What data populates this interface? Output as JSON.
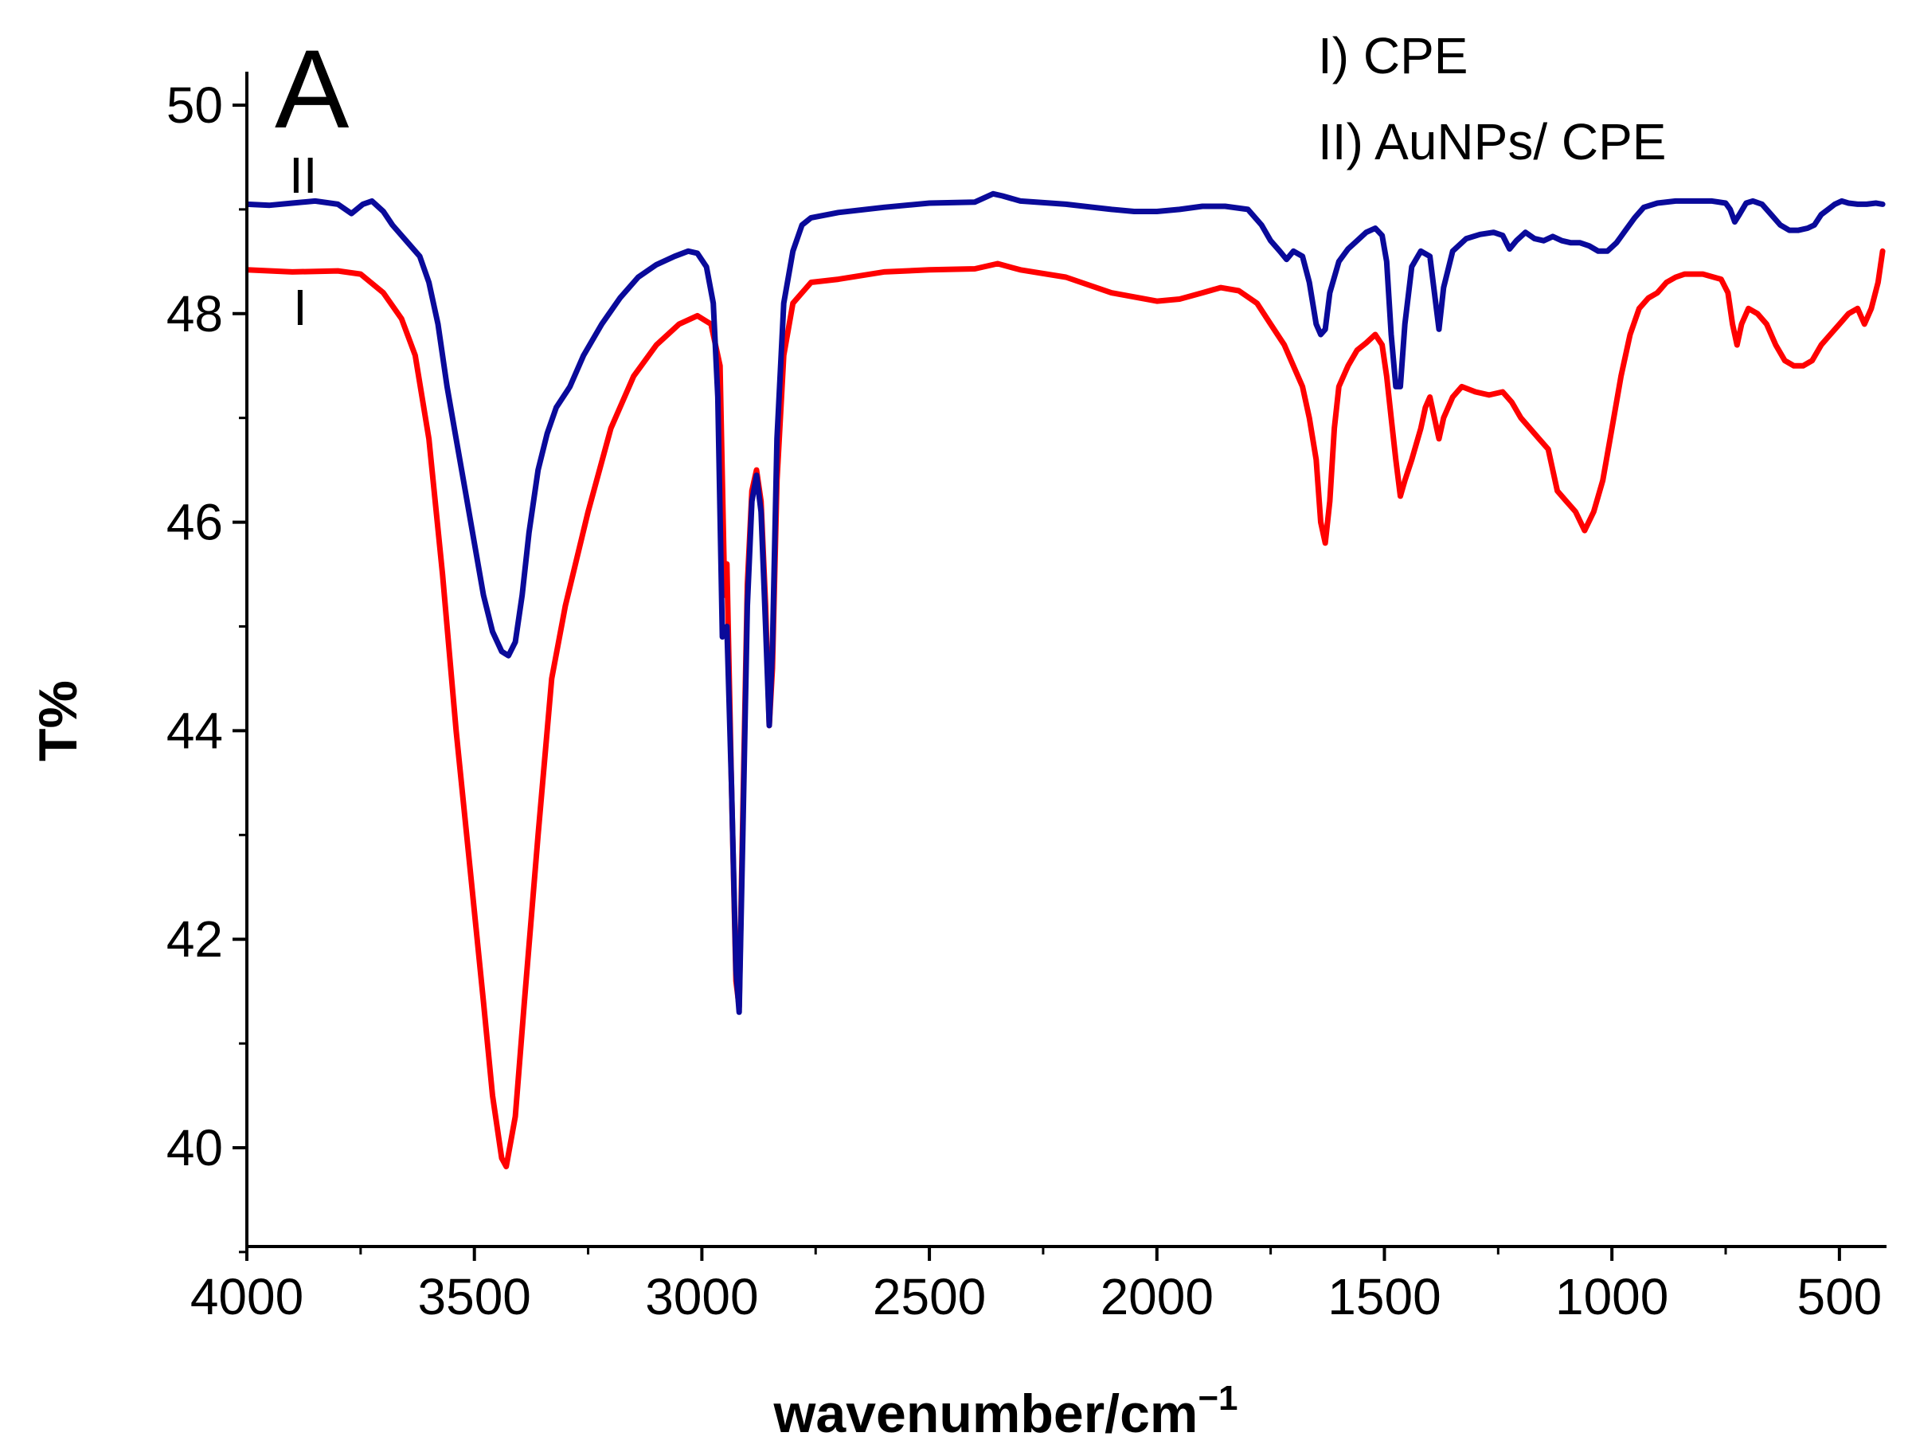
{
  "chart_data": {
    "type": "line",
    "panel_label": "A",
    "xlabel": "wavenumber/cm",
    "xlabel_superscript": "−1",
    "ylabel": "T%",
    "xlim": [
      4000,
      400
    ],
    "ylim": [
      39,
      50
    ],
    "x_ticks": [
      {
        "value": 4000,
        "label": "4000"
      },
      {
        "value": 3500,
        "label": "3500"
      },
      {
        "value": 3000,
        "label": "3000"
      },
      {
        "value": 2500,
        "label": "2500"
      },
      {
        "value": 2000,
        "label": "2000"
      },
      {
        "value": 1500,
        "label": "1500"
      },
      {
        "value": 1000,
        "label": "1000"
      },
      {
        "value": 500,
        "label": "500"
      }
    ],
    "y_ticks": [
      {
        "value": 40,
        "label": "40"
      },
      {
        "value": 42,
        "label": "42"
      },
      {
        "value": 44,
        "label": "44"
      },
      {
        "value": 46,
        "label": "46"
      },
      {
        "value": 48,
        "label": "48"
      },
      {
        "value": 50,
        "label": "50"
      }
    ],
    "legend": [
      "I) CPE",
      "II) AuNPs/ CPE"
    ],
    "series": [
      {
        "name": "I) CPE",
        "label": "I",
        "color": "#ff0000",
        "points": [
          [
            4000,
            48.42
          ],
          [
            3900,
            48.4
          ],
          [
            3800,
            48.41
          ],
          [
            3750,
            48.38
          ],
          [
            3700,
            48.2
          ],
          [
            3660,
            47.95
          ],
          [
            3630,
            47.6
          ],
          [
            3600,
            46.8
          ],
          [
            3570,
            45.5
          ],
          [
            3540,
            44.0
          ],
          [
            3510,
            42.7
          ],
          [
            3480,
            41.4
          ],
          [
            3460,
            40.5
          ],
          [
            3440,
            39.9
          ],
          [
            3430,
            39.82
          ],
          [
            3410,
            40.3
          ],
          [
            3390,
            41.4
          ],
          [
            3360,
            43.0
          ],
          [
            3330,
            44.5
          ],
          [
            3300,
            45.2
          ],
          [
            3250,
            46.1
          ],
          [
            3200,
            46.9
          ],
          [
            3150,
            47.4
          ],
          [
            3100,
            47.7
          ],
          [
            3050,
            47.9
          ],
          [
            3010,
            47.98
          ],
          [
            2980,
            47.9
          ],
          [
            2960,
            47.5
          ],
          [
            2950,
            45.3
          ],
          [
            2945,
            45.6
          ],
          [
            2935,
            43.5
          ],
          [
            2925,
            41.6
          ],
          [
            2918,
            41.35
          ],
          [
            2910,
            43.2
          ],
          [
            2900,
            45.4
          ],
          [
            2890,
            46.3
          ],
          [
            2880,
            46.5
          ],
          [
            2870,
            46.2
          ],
          [
            2860,
            45.2
          ],
          [
            2852,
            44.05
          ],
          [
            2845,
            44.6
          ],
          [
            2835,
            46.4
          ],
          [
            2820,
            47.6
          ],
          [
            2800,
            48.1
          ],
          [
            2760,
            48.3
          ],
          [
            2700,
            48.33
          ],
          [
            2600,
            48.4
          ],
          [
            2500,
            48.42
          ],
          [
            2400,
            48.43
          ],
          [
            2350,
            48.48
          ],
          [
            2300,
            48.42
          ],
          [
            2200,
            48.35
          ],
          [
            2100,
            48.2
          ],
          [
            2000,
            48.12
          ],
          [
            1950,
            48.14
          ],
          [
            1900,
            48.2
          ],
          [
            1860,
            48.25
          ],
          [
            1820,
            48.22
          ],
          [
            1780,
            48.1
          ],
          [
            1750,
            47.9
          ],
          [
            1720,
            47.7
          ],
          [
            1700,
            47.5
          ],
          [
            1680,
            47.3
          ],
          [
            1665,
            47.0
          ],
          [
            1650,
            46.6
          ],
          [
            1640,
            46.0
          ],
          [
            1630,
            45.8
          ],
          [
            1620,
            46.2
          ],
          [
            1610,
            46.9
          ],
          [
            1600,
            47.3
          ],
          [
            1580,
            47.5
          ],
          [
            1560,
            47.65
          ],
          [
            1540,
            47.72
          ],
          [
            1520,
            47.8
          ],
          [
            1505,
            47.7
          ],
          [
            1495,
            47.4
          ],
          [
            1485,
            47.0
          ],
          [
            1475,
            46.6
          ],
          [
            1465,
            46.25
          ],
          [
            1455,
            46.4
          ],
          [
            1440,
            46.6
          ],
          [
            1420,
            46.9
          ],
          [
            1410,
            47.1
          ],
          [
            1400,
            47.2
          ],
          [
            1390,
            47.0
          ],
          [
            1380,
            46.8
          ],
          [
            1370,
            47.0
          ],
          [
            1350,
            47.2
          ],
          [
            1330,
            47.3
          ],
          [
            1300,
            47.25
          ],
          [
            1270,
            47.22
          ],
          [
            1240,
            47.25
          ],
          [
            1220,
            47.15
          ],
          [
            1200,
            47.0
          ],
          [
            1180,
            46.9
          ],
          [
            1160,
            46.8
          ],
          [
            1140,
            46.7
          ],
          [
            1120,
            46.3
          ],
          [
            1100,
            46.2
          ],
          [
            1080,
            46.1
          ],
          [
            1060,
            45.92
          ],
          [
            1040,
            46.1
          ],
          [
            1020,
            46.4
          ],
          [
            1000,
            46.9
          ],
          [
            980,
            47.4
          ],
          [
            960,
            47.8
          ],
          [
            940,
            48.05
          ],
          [
            920,
            48.15
          ],
          [
            900,
            48.2
          ],
          [
            880,
            48.3
          ],
          [
            860,
            48.35
          ],
          [
            840,
            48.38
          ],
          [
            800,
            48.38
          ],
          [
            760,
            48.33
          ],
          [
            745,
            48.2
          ],
          [
            735,
            47.9
          ],
          [
            725,
            47.7
          ],
          [
            715,
            47.9
          ],
          [
            700,
            48.05
          ],
          [
            680,
            48.0
          ],
          [
            660,
            47.9
          ],
          [
            640,
            47.7
          ],
          [
            620,
            47.55
          ],
          [
            600,
            47.5
          ],
          [
            580,
            47.5
          ],
          [
            560,
            47.55
          ],
          [
            540,
            47.7
          ],
          [
            520,
            47.8
          ],
          [
            500,
            47.9
          ],
          [
            480,
            48.0
          ],
          [
            460,
            48.05
          ],
          [
            445,
            47.9
          ],
          [
            430,
            48.05
          ],
          [
            415,
            48.3
          ],
          [
            405,
            48.6
          ]
        ]
      },
      {
        "name": "II) AuNPs/ CPE",
        "label": "II",
        "color": "#0a0a9a",
        "points": [
          [
            4000,
            49.05
          ],
          [
            3950,
            49.04
          ],
          [
            3900,
            49.06
          ],
          [
            3850,
            49.08
          ],
          [
            3800,
            49.05
          ],
          [
            3770,
            48.96
          ],
          [
            3745,
            49.05
          ],
          [
            3725,
            49.08
          ],
          [
            3700,
            48.98
          ],
          [
            3680,
            48.85
          ],
          [
            3650,
            48.7
          ],
          [
            3620,
            48.55
          ],
          [
            3600,
            48.3
          ],
          [
            3580,
            47.9
          ],
          [
            3560,
            47.3
          ],
          [
            3540,
            46.8
          ],
          [
            3520,
            46.3
          ],
          [
            3500,
            45.8
          ],
          [
            3480,
            45.3
          ],
          [
            3460,
            44.95
          ],
          [
            3440,
            44.76
          ],
          [
            3425,
            44.72
          ],
          [
            3410,
            44.85
          ],
          [
            3395,
            45.3
          ],
          [
            3380,
            45.9
          ],
          [
            3360,
            46.5
          ],
          [
            3340,
            46.85
          ],
          [
            3320,
            47.1
          ],
          [
            3290,
            47.3
          ],
          [
            3260,
            47.6
          ],
          [
            3220,
            47.9
          ],
          [
            3180,
            48.15
          ],
          [
            3140,
            48.35
          ],
          [
            3100,
            48.47
          ],
          [
            3060,
            48.55
          ],
          [
            3030,
            48.6
          ],
          [
            3010,
            48.58
          ],
          [
            2990,
            48.45
          ],
          [
            2975,
            48.1
          ],
          [
            2965,
            47.2
          ],
          [
            2955,
            44.9
          ],
          [
            2945,
            45.0
          ],
          [
            2935,
            43.5
          ],
          [
            2925,
            41.7
          ],
          [
            2918,
            41.3
          ],
          [
            2910,
            43.0
          ],
          [
            2900,
            45.2
          ],
          [
            2890,
            46.2
          ],
          [
            2880,
            46.45
          ],
          [
            2870,
            46.1
          ],
          [
            2860,
            45.0
          ],
          [
            2852,
            44.05
          ],
          [
            2845,
            44.8
          ],
          [
            2835,
            46.8
          ],
          [
            2820,
            48.1
          ],
          [
            2800,
            48.6
          ],
          [
            2780,
            48.85
          ],
          [
            2760,
            48.92
          ],
          [
            2700,
            48.97
          ],
          [
            2600,
            49.02
          ],
          [
            2500,
            49.06
          ],
          [
            2400,
            49.07
          ],
          [
            2360,
            49.15
          ],
          [
            2340,
            49.13
          ],
          [
            2300,
            49.08
          ],
          [
            2200,
            49.05
          ],
          [
            2100,
            49.0
          ],
          [
            2050,
            48.98
          ],
          [
            2000,
            48.98
          ],
          [
            1950,
            49.0
          ],
          [
            1900,
            49.03
          ],
          [
            1850,
            49.03
          ],
          [
            1800,
            49.0
          ],
          [
            1770,
            48.85
          ],
          [
            1750,
            48.7
          ],
          [
            1730,
            48.6
          ],
          [
            1715,
            48.52
          ],
          [
            1700,
            48.6
          ],
          [
            1680,
            48.55
          ],
          [
            1665,
            48.3
          ],
          [
            1650,
            47.9
          ],
          [
            1640,
            47.8
          ],
          [
            1630,
            47.85
          ],
          [
            1620,
            48.2
          ],
          [
            1600,
            48.5
          ],
          [
            1580,
            48.62
          ],
          [
            1560,
            48.7
          ],
          [
            1540,
            48.78
          ],
          [
            1520,
            48.82
          ],
          [
            1505,
            48.75
          ],
          [
            1495,
            48.5
          ],
          [
            1485,
            47.8
          ],
          [
            1475,
            47.3
          ],
          [
            1465,
            47.3
          ],
          [
            1455,
            47.9
          ],
          [
            1440,
            48.45
          ],
          [
            1420,
            48.6
          ],
          [
            1400,
            48.55
          ],
          [
            1390,
            48.2
          ],
          [
            1380,
            47.85
          ],
          [
            1370,
            48.25
          ],
          [
            1350,
            48.6
          ],
          [
            1320,
            48.72
          ],
          [
            1290,
            48.76
          ],
          [
            1260,
            48.78
          ],
          [
            1240,
            48.75
          ],
          [
            1225,
            48.62
          ],
          [
            1210,
            48.7
          ],
          [
            1190,
            48.78
          ],
          [
            1170,
            48.72
          ],
          [
            1150,
            48.7
          ],
          [
            1130,
            48.74
          ],
          [
            1110,
            48.7
          ],
          [
            1090,
            48.68
          ],
          [
            1070,
            48.68
          ],
          [
            1050,
            48.65
          ],
          [
            1030,
            48.6
          ],
          [
            1010,
            48.6
          ],
          [
            990,
            48.68
          ],
          [
            970,
            48.8
          ],
          [
            950,
            48.92
          ],
          [
            930,
            49.02
          ],
          [
            900,
            49.06
          ],
          [
            860,
            49.08
          ],
          [
            820,
            49.08
          ],
          [
            780,
            49.08
          ],
          [
            750,
            49.06
          ],
          [
            740,
            49.0
          ],
          [
            730,
            48.88
          ],
          [
            720,
            48.95
          ],
          [
            705,
            49.06
          ],
          [
            690,
            49.08
          ],
          [
            670,
            49.05
          ],
          [
            650,
            48.95
          ],
          [
            630,
            48.85
          ],
          [
            610,
            48.8
          ],
          [
            590,
            48.8
          ],
          [
            570,
            48.82
          ],
          [
            555,
            48.85
          ],
          [
            540,
            48.95
          ],
          [
            525,
            49.0
          ],
          [
            510,
            49.05
          ],
          [
            495,
            49.08
          ],
          [
            480,
            49.06
          ],
          [
            460,
            49.05
          ],
          [
            440,
            49.05
          ],
          [
            420,
            49.06
          ],
          [
            405,
            49.05
          ]
        ]
      }
    ]
  }
}
